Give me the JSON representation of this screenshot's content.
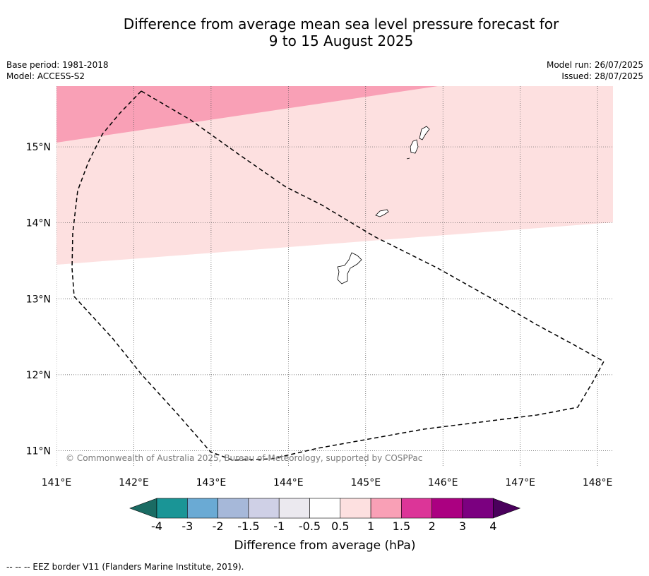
{
  "title_line1": "Difference from average mean sea level pressure forecast for",
  "title_line2": "9 to 15 August 2025",
  "meta_left": [
    "Base period: 1981-2018",
    "Model: ACCESS-S2"
  ],
  "meta_right": [
    "Model run: 26/07/2025",
    "Issued: 28/07/2025"
  ],
  "map": {
    "lon_ticks": [
      "141°E",
      "142°E",
      "143°E",
      "144°E",
      "145°E",
      "146°E",
      "147°E",
      "148°E"
    ],
    "lat_ticks": [
      "15°N",
      "14°N",
      "13°N",
      "12°N",
      "11°N"
    ],
    "lon_range": [
      141.0,
      148.2
    ],
    "lat_range": [
      10.8,
      15.8
    ],
    "copyright": "© Commonwealth of Australia 2025, Bureau of Meteorology, supported by COSPPac",
    "anomaly_bands": [
      {
        "range": "0.5 to 1",
        "color": "#fde0e0"
      },
      {
        "range": "1 to 1.5",
        "color": "#f9a0b6"
      }
    ],
    "eez_border_style": "dashed"
  },
  "colorbar": {
    "colors": [
      "#1a6b63",
      "#1a9596",
      "#6aaad4",
      "#a6b8d9",
      "#cfd0e6",
      "#ebe9ef",
      "#ffffff",
      "#fde0e0",
      "#f9a0b6",
      "#dc3598",
      "#ab0081",
      "#7b0080",
      "#4a005c"
    ],
    "tick_labels": [
      "-4",
      "-3",
      "-2",
      "-1.5",
      "-1",
      "-0.5",
      "0.5",
      "1",
      "1.5",
      "2",
      "3",
      "4"
    ],
    "label": "Difference from average (hPa)"
  },
  "footer": "-- -- -- EEZ border V11 (Flanders Marine Institute, 2019)."
}
